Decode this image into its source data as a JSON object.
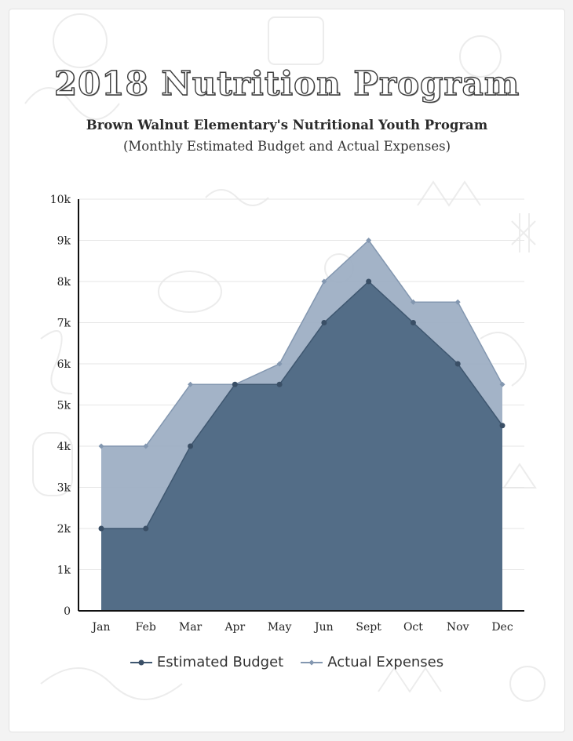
{
  "page": {
    "title": "2018 Nutrition Program",
    "subtitle": "Brown Walnut Elementary's Nutritional Youth Program",
    "subtitle2": "(Monthly Estimated Budget and Actual Expenses)"
  },
  "colors": {
    "estimated": "#536d87",
    "actual": "#9eafc4",
    "axis": "#111111",
    "grid": "#e6e6e6"
  },
  "chart_data": {
    "type": "area",
    "categories": [
      "Jan",
      "Feb",
      "Mar",
      "Apr",
      "May",
      "Jun",
      "Sept",
      "Oct",
      "Nov",
      "Dec"
    ],
    "series": [
      {
        "name": "Estimated Budget",
        "values": [
          2000,
          2000,
          4000,
          5500,
          5500,
          7000,
          8000,
          7000,
          6000,
          4500
        ]
      },
      {
        "name": "Actual Expenses",
        "values": [
          4000,
          4000,
          5500,
          5500,
          6000,
          8000,
          9000,
          7500,
          7500,
          5500
        ]
      }
    ],
    "y_ticks": [
      "0",
      "1k",
      "2k",
      "3k",
      "4k",
      "5k",
      "6k",
      "7k",
      "8k",
      "9k",
      "10k"
    ],
    "ylim": [
      0,
      10000
    ],
    "grid": true,
    "legend_position": "bottom"
  }
}
